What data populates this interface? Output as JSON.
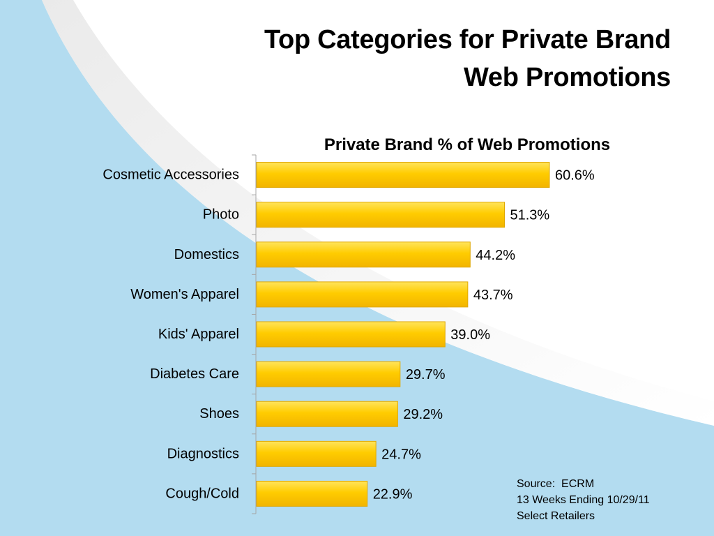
{
  "slide": {
    "title_line1": "Top Categories for Private Brand",
    "title_line2": "Web Promotions"
  },
  "colors": {
    "background_blue": "#b3dcf0",
    "bar_fill": "#ffcc00",
    "bar_outline": "#e0a800"
  },
  "chart_data": {
    "type": "bar",
    "orientation": "horizontal",
    "title": "Private Brand % of Web Promotions",
    "categories": [
      "Cosmetic Accessories",
      "Photo",
      "Domestics",
      "Women's Apparel",
      "Kids' Apparel",
      "Diabetes Care",
      "Shoes",
      "Diagnostics",
      "Cough/Cold"
    ],
    "values": [
      60.6,
      51.3,
      44.2,
      43.7,
      39.0,
      29.7,
      29.2,
      24.7,
      22.9
    ],
    "value_labels": [
      "60.6%",
      "51.3%",
      "44.2%",
      "43.7%",
      "39.0%",
      "29.7%",
      "29.2%",
      "24.7%",
      "22.9%"
    ],
    "xlim": [
      0,
      70
    ],
    "xlabel": "",
    "ylabel": "",
    "grid": false,
    "legend": "none"
  },
  "source": {
    "line1": "Source:  ECRM",
    "line2": "13 Weeks Ending 10/29/11",
    "line3": "Select Retailers"
  }
}
